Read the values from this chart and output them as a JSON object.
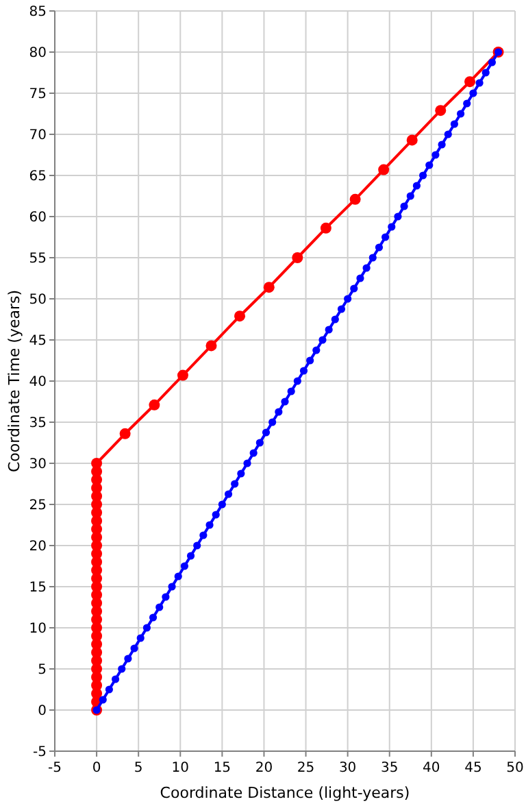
{
  "chart_data": {
    "type": "line",
    "xlabel": "Coordinate Distance (light-years)",
    "ylabel": "Coordinate Time (years)",
    "xlim": [
      -5,
      50
    ],
    "ylim": [
      -5,
      85
    ],
    "xticks": [
      -5,
      0,
      5,
      10,
      15,
      20,
      25,
      30,
      35,
      40,
      45,
      50
    ],
    "yticks": [
      -5,
      0,
      5,
      10,
      15,
      20,
      25,
      30,
      35,
      40,
      45,
      50,
      55,
      60,
      65,
      70,
      75,
      80,
      85
    ],
    "grid": true,
    "marker": "circle",
    "line_style": "solid",
    "series": [
      {
        "color": "#ff0000",
        "x": [
          0,
          0,
          0,
          0,
          0,
          0,
          0,
          0,
          0,
          0,
          0,
          0,
          0,
          0,
          0,
          0,
          0,
          0,
          0,
          0,
          0,
          0,
          0,
          0,
          0,
          0,
          0,
          0,
          0,
          0,
          0,
          3.4,
          6.9,
          10.3,
          13.7,
          17.1,
          20.6,
          24,
          27.4,
          30.9,
          34.3,
          37.7,
          41.1,
          44.6,
          48
        ],
        "values": [
          0,
          1,
          2,
          3,
          4,
          5,
          6,
          7,
          8,
          9,
          10,
          11,
          12,
          13,
          14,
          15,
          16,
          17,
          18,
          19,
          20,
          21,
          22,
          23,
          24,
          25,
          26,
          27,
          28,
          29,
          30,
          33.6,
          37.1,
          40.7,
          44.3,
          47.9,
          51.4,
          55,
          58.6,
          62.1,
          65.7,
          69.3,
          72.9,
          76.4,
          80
        ]
      },
      {
        "color": "#0000ff",
        "x": [
          0,
          0.75,
          1.5,
          2.25,
          3,
          3.75,
          4.5,
          5.25,
          6,
          6.75,
          7.5,
          8.25,
          9,
          9.75,
          10.5,
          11.25,
          12,
          12.75,
          13.5,
          14.25,
          15,
          15.75,
          16.5,
          17.25,
          18,
          18.75,
          19.5,
          20.25,
          21,
          21.75,
          22.5,
          23.25,
          24,
          24.75,
          25.5,
          26.25,
          27,
          27.75,
          28.5,
          29.25,
          30,
          30.75,
          31.5,
          32.25,
          33,
          33.75,
          34.5,
          35.25,
          36,
          36.75,
          37.5,
          38.25,
          39,
          39.75,
          40.5,
          41.25,
          42,
          42.75,
          43.5,
          44.25,
          45,
          45.75,
          46.5,
          47.25,
          48
        ],
        "values": [
          0,
          1.25,
          2.5,
          3.75,
          5,
          6.25,
          7.5,
          8.75,
          10,
          11.25,
          12.5,
          13.75,
          15,
          16.25,
          17.5,
          18.75,
          20,
          21.25,
          22.5,
          23.75,
          25,
          26.25,
          27.5,
          28.75,
          30,
          31.25,
          32.5,
          33.75,
          35,
          36.25,
          37.5,
          38.75,
          40,
          41.25,
          42.5,
          43.75,
          45,
          46.25,
          47.5,
          48.75,
          50,
          51.25,
          52.5,
          53.75,
          55,
          56.25,
          57.5,
          58.75,
          60,
          61.25,
          62.5,
          63.75,
          65,
          66.25,
          67.5,
          68.75,
          70,
          71.25,
          72.5,
          73.75,
          75,
          76.25,
          77.5,
          78.75,
          80
        ]
      }
    ]
  }
}
